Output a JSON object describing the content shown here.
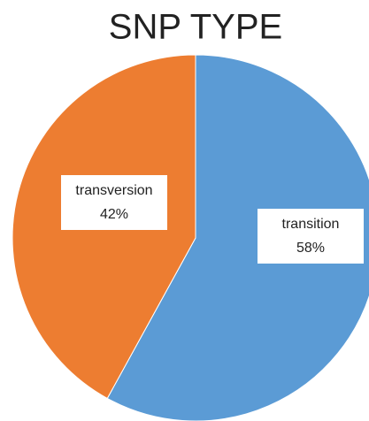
{
  "chart_data": {
    "type": "pie",
    "title": "SNP TYPE",
    "categories": [
      "transition",
      "transversion"
    ],
    "values": [
      58,
      42
    ],
    "value_labels": [
      "58%",
      "42%"
    ],
    "colors": [
      "#5b9bd5",
      "#ed7d31"
    ]
  }
}
